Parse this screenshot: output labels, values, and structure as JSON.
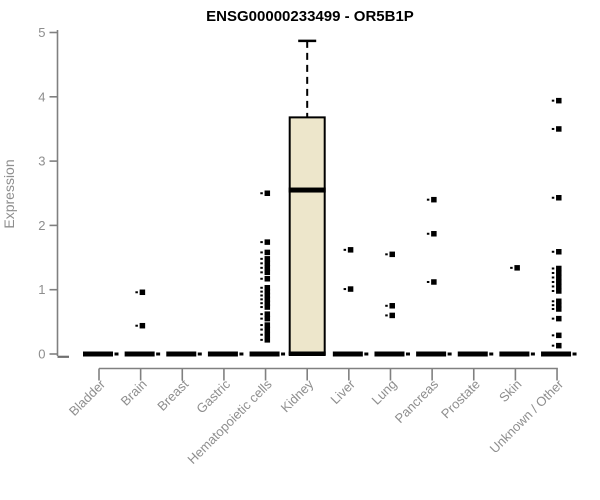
{
  "chart_data": {
    "type": "boxplot",
    "title": "ENSG00000233499 - OR5B1P",
    "xlabel": "",
    "ylabel": "Expression",
    "ylim": [
      0,
      5
    ],
    "yticks": [
      0,
      1,
      2,
      3,
      4,
      5
    ],
    "grid": false,
    "legend": "none",
    "categories": [
      "Bladder",
      "Brain",
      "Breast",
      "Gastric",
      "Hematopoietic cells",
      "Kidney",
      "Liver",
      "Lung",
      "Pancreas",
      "Prostate",
      "Skin",
      "Unknown / Other"
    ],
    "boxes": [
      {
        "category": "Bladder",
        "min": 0,
        "q1": 0,
        "median": 0,
        "q3": 0,
        "max": 0,
        "outliers": []
      },
      {
        "category": "Brain",
        "min": 0,
        "q1": 0,
        "median": 0,
        "q3": 0,
        "max": 0,
        "outliers": [
          0.96,
          0.44
        ]
      },
      {
        "category": "Breast",
        "min": 0,
        "q1": 0,
        "median": 0,
        "q3": 0,
        "max": 0,
        "outliers": []
      },
      {
        "category": "Gastric",
        "min": 0,
        "q1": 0,
        "median": 0,
        "q3": 0,
        "max": 0,
        "outliers": []
      },
      {
        "category": "Hematopoietic cells",
        "min": 0,
        "q1": 0,
        "median": 0,
        "q3": 0,
        "max": 0,
        "outliers": [
          2.5,
          1.74,
          1.58,
          1.48,
          1.41,
          1.34,
          1.27,
          1.17,
          1.03,
          0.97,
          0.91,
          0.85,
          0.79,
          0.73,
          0.62,
          0.55,
          0.45,
          0.38,
          0.3,
          0.22
        ]
      },
      {
        "category": "Kidney",
        "min": 0,
        "q1": 0,
        "median": 2.55,
        "q3": 3.68,
        "max": 4.87,
        "outliers": []
      },
      {
        "category": "Liver",
        "min": 0,
        "q1": 0,
        "median": 0,
        "q3": 0,
        "max": 0,
        "outliers": [
          1.62,
          1.01
        ]
      },
      {
        "category": "Lung",
        "min": 0,
        "q1": 0,
        "median": 0,
        "q3": 0,
        "max": 0,
        "outliers": [
          1.55,
          0.75,
          0.6
        ]
      },
      {
        "category": "Pancreas",
        "min": 0,
        "q1": 0,
        "median": 0,
        "q3": 0,
        "max": 0,
        "outliers": [
          2.4,
          1.87,
          1.12
        ]
      },
      {
        "category": "Prostate",
        "min": 0,
        "q1": 0,
        "median": 0,
        "q3": 0,
        "max": 0,
        "outliers": []
      },
      {
        "category": "Skin",
        "min": 0,
        "q1": 0,
        "median": 0,
        "q3": 0,
        "max": 0,
        "outliers": [
          1.34
        ]
      },
      {
        "category": "Unknown / Other",
        "min": 0,
        "q1": 0,
        "median": 0,
        "q3": 0,
        "max": 0,
        "outliers": [
          3.94,
          3.5,
          2.43,
          1.59,
          1.33,
          1.26,
          1.19,
          1.12,
          1.05,
          0.98,
          0.82,
          0.76,
          0.7,
          0.55,
          0.29,
          0.13
        ]
      }
    ],
    "colors": {
      "box_fill": "#EDE6CB",
      "box_border": "#000000",
      "median": "#000000",
      "outlier": "#000000",
      "zero_bar": "#000000",
      "axis_line": "#808080",
      "tick_text": "#8E8E8E",
      "axis_label_text": "#8E8E8E",
      "title_text": "#000000",
      "background": "#FFFFFF"
    }
  }
}
